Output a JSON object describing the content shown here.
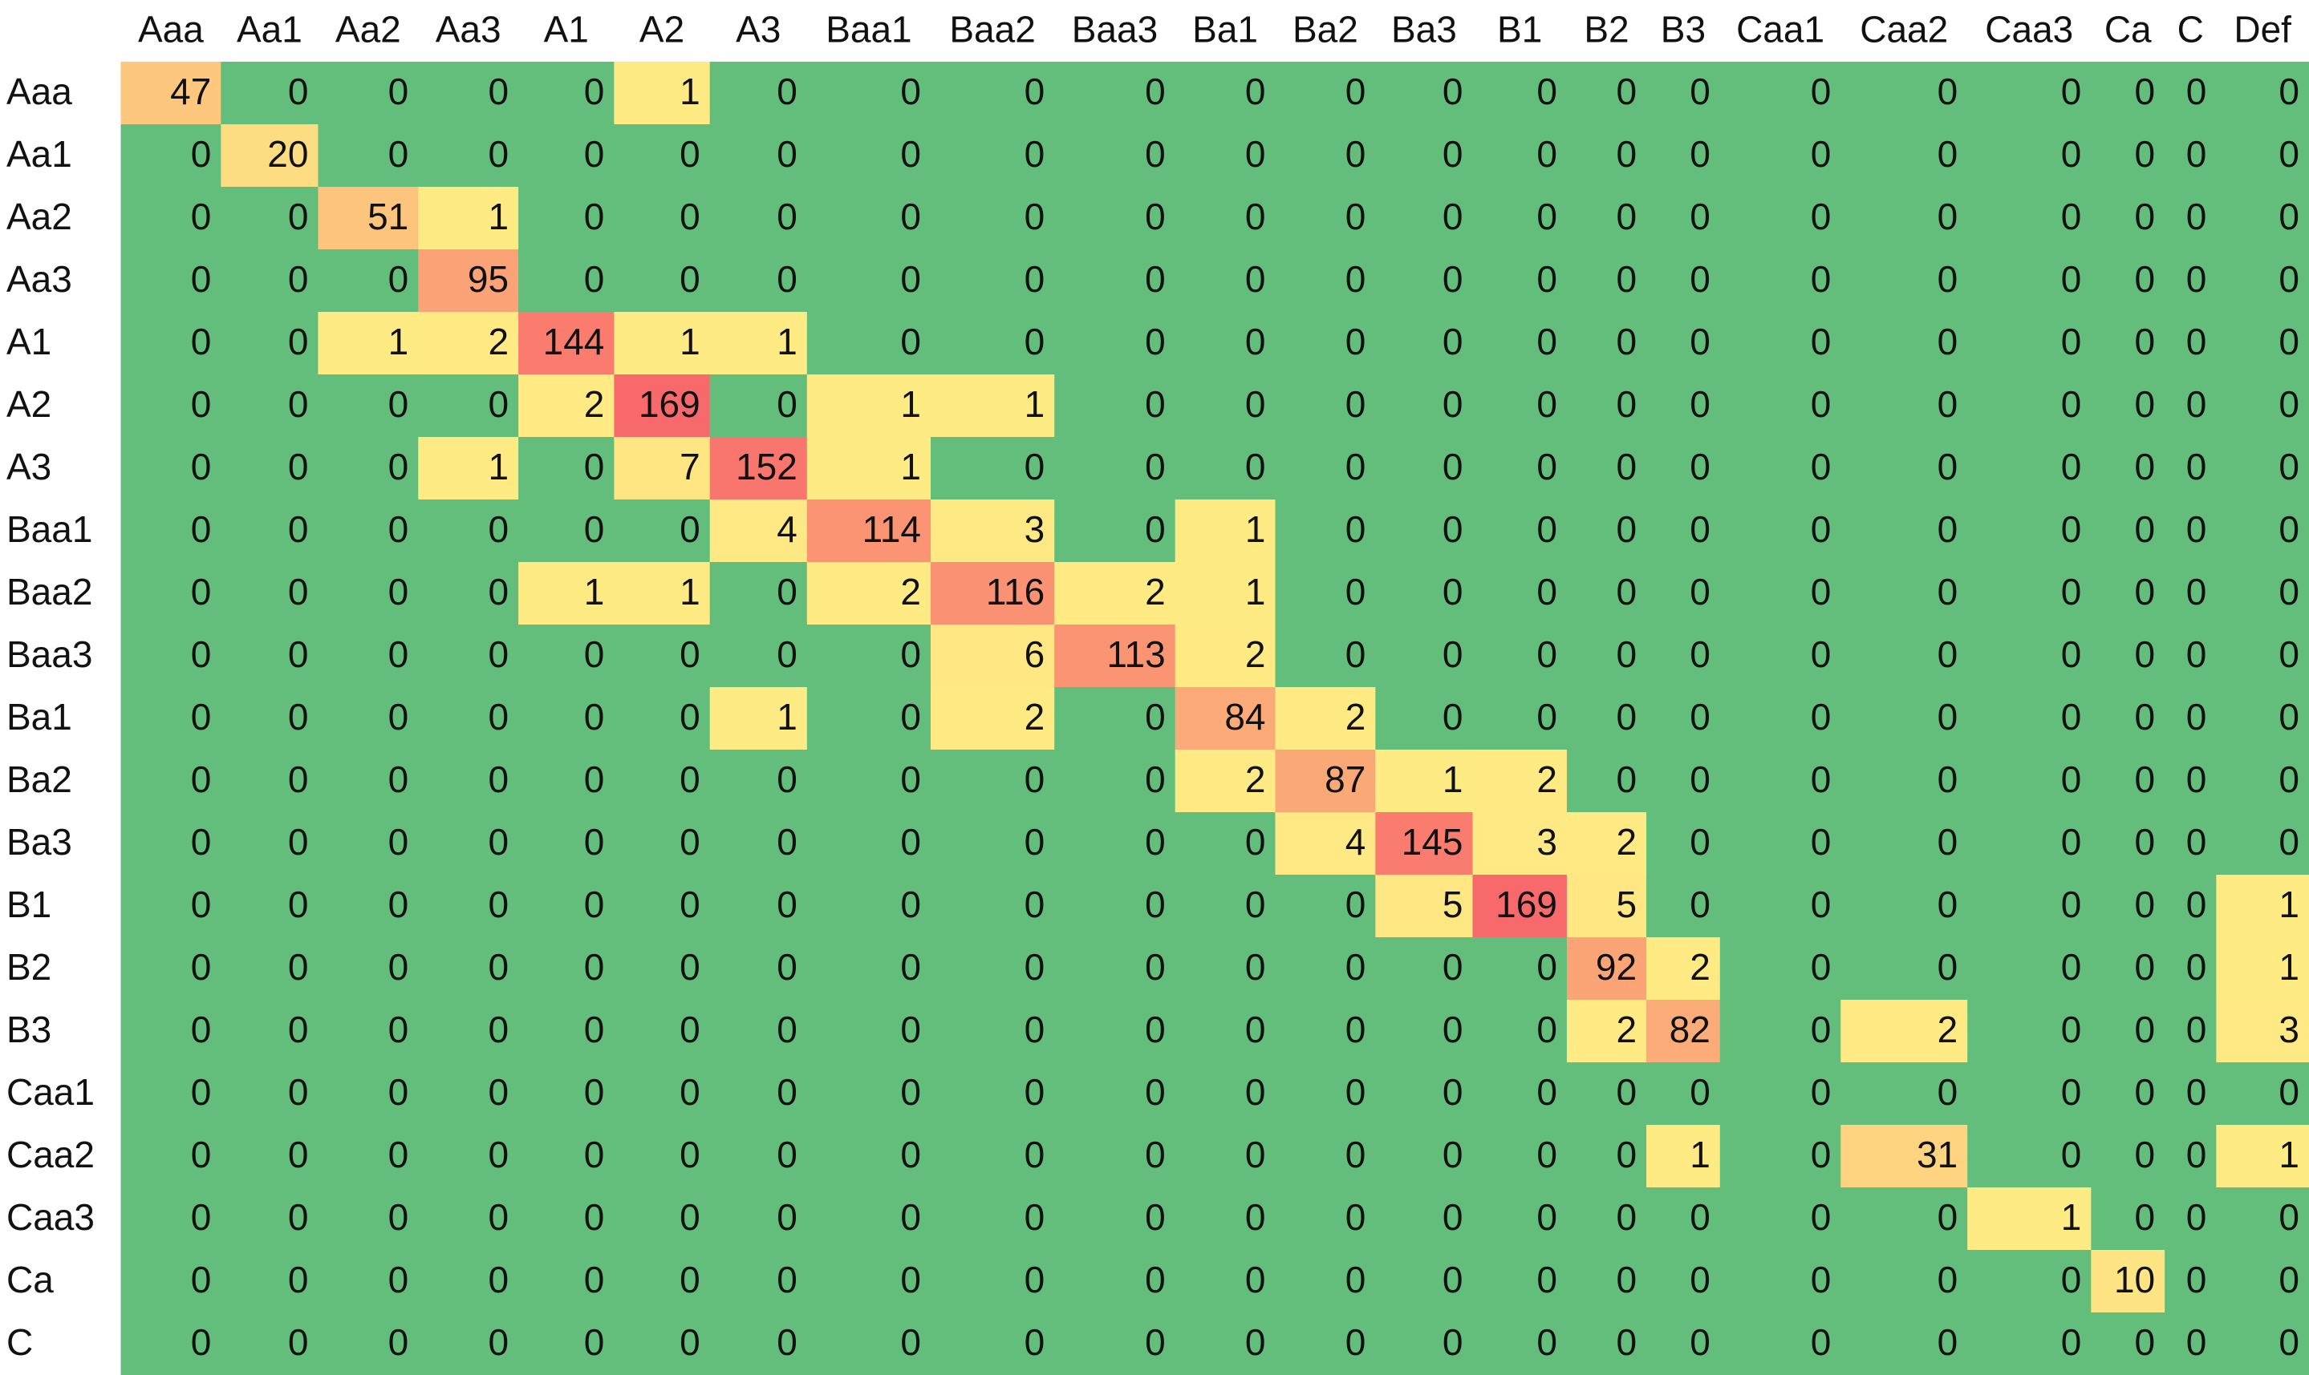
{
  "table": {
    "colors": {
      "zero": "#63be7b",
      "low": "#ffeb84",
      "high": "#f8696b"
    },
    "columns": [
      "Aaa",
      "Aa1",
      "Aa2",
      "Aa3",
      "A1",
      "A2",
      "A3",
      "Baa1",
      "Baa2",
      "Baa3",
      "Ba1",
      "Ba2",
      "Ba3",
      "B1",
      "B2",
      "B3",
      "Caa1",
      "Caa2",
      "Caa3",
      "Ca",
      "C",
      "Def"
    ],
    "rows": [
      {
        "label": "Aaa",
        "cells": [
          47,
          0,
          0,
          0,
          0,
          1,
          0,
          0,
          0,
          0,
          0,
          0,
          0,
          0,
          0,
          0,
          0,
          0,
          0,
          0,
          0,
          0
        ]
      },
      {
        "label": "Aa1",
        "cells": [
          0,
          20,
          0,
          0,
          0,
          0,
          0,
          0,
          0,
          0,
          0,
          0,
          0,
          0,
          0,
          0,
          0,
          0,
          0,
          0,
          0,
          0
        ]
      },
      {
        "label": "Aa2",
        "cells": [
          0,
          0,
          51,
          1,
          0,
          0,
          0,
          0,
          0,
          0,
          0,
          0,
          0,
          0,
          0,
          0,
          0,
          0,
          0,
          0,
          0,
          0
        ]
      },
      {
        "label": "Aa3",
        "cells": [
          0,
          0,
          0,
          95,
          0,
          0,
          0,
          0,
          0,
          0,
          0,
          0,
          0,
          0,
          0,
          0,
          0,
          0,
          0,
          0,
          0,
          0
        ]
      },
      {
        "label": "A1",
        "cells": [
          0,
          0,
          1,
          2,
          144,
          1,
          1,
          0,
          0,
          0,
          0,
          0,
          0,
          0,
          0,
          0,
          0,
          0,
          0,
          0,
          0,
          0
        ]
      },
      {
        "label": "A2",
        "cells": [
          0,
          0,
          0,
          0,
          2,
          169,
          0,
          1,
          1,
          0,
          0,
          0,
          0,
          0,
          0,
          0,
          0,
          0,
          0,
          0,
          0,
          0
        ]
      },
      {
        "label": "A3",
        "cells": [
          0,
          0,
          0,
          1,
          0,
          7,
          152,
          1,
          0,
          0,
          0,
          0,
          0,
          0,
          0,
          0,
          0,
          0,
          0,
          0,
          0,
          0
        ]
      },
      {
        "label": "Baa1",
        "cells": [
          0,
          0,
          0,
          0,
          0,
          0,
          4,
          114,
          3,
          0,
          1,
          0,
          0,
          0,
          0,
          0,
          0,
          0,
          0,
          0,
          0,
          0
        ]
      },
      {
        "label": "Baa2",
        "cells": [
          0,
          0,
          0,
          0,
          1,
          1,
          0,
          2,
          116,
          2,
          1,
          0,
          0,
          0,
          0,
          0,
          0,
          0,
          0,
          0,
          0,
          0
        ]
      },
      {
        "label": "Baa3",
        "cells": [
          0,
          0,
          0,
          0,
          0,
          0,
          0,
          0,
          6,
          113,
          2,
          0,
          0,
          0,
          0,
          0,
          0,
          0,
          0,
          0,
          0,
          0
        ]
      },
      {
        "label": "Ba1",
        "cells": [
          0,
          0,
          0,
          0,
          0,
          0,
          1,
          0,
          2,
          0,
          84,
          2,
          0,
          0,
          0,
          0,
          0,
          0,
          0,
          0,
          0,
          0
        ]
      },
      {
        "label": "Ba2",
        "cells": [
          0,
          0,
          0,
          0,
          0,
          0,
          0,
          0,
          0,
          0,
          2,
          87,
          1,
          2,
          0,
          0,
          0,
          0,
          0,
          0,
          0,
          0
        ]
      },
      {
        "label": "Ba3",
        "cells": [
          0,
          0,
          0,
          0,
          0,
          0,
          0,
          0,
          0,
          0,
          0,
          4,
          145,
          3,
          2,
          0,
          0,
          0,
          0,
          0,
          0,
          0
        ]
      },
      {
        "label": "B1",
        "cells": [
          0,
          0,
          0,
          0,
          0,
          0,
          0,
          0,
          0,
          0,
          0,
          0,
          5,
          169,
          5,
          0,
          0,
          0,
          0,
          0,
          0,
          1
        ]
      },
      {
        "label": "B2",
        "cells": [
          0,
          0,
          0,
          0,
          0,
          0,
          0,
          0,
          0,
          0,
          0,
          0,
          0,
          0,
          92,
          2,
          0,
          0,
          0,
          0,
          0,
          1
        ]
      },
      {
        "label": "B3",
        "cells": [
          0,
          0,
          0,
          0,
          0,
          0,
          0,
          0,
          0,
          0,
          0,
          0,
          0,
          0,
          2,
          82,
          0,
          2,
          0,
          0,
          0,
          3
        ]
      },
      {
        "label": "Caa1",
        "cells": [
          0,
          0,
          0,
          0,
          0,
          0,
          0,
          0,
          0,
          0,
          0,
          0,
          0,
          0,
          0,
          0,
          0,
          0,
          0,
          0,
          0,
          0
        ]
      },
      {
        "label": "Caa2",
        "cells": [
          0,
          0,
          0,
          0,
          0,
          0,
          0,
          0,
          0,
          0,
          0,
          0,
          0,
          0,
          0,
          1,
          0,
          31,
          0,
          0,
          0,
          1
        ]
      },
      {
        "label": "Caa3",
        "cells": [
          0,
          0,
          0,
          0,
          0,
          0,
          0,
          0,
          0,
          0,
          0,
          0,
          0,
          0,
          0,
          0,
          0,
          0,
          1,
          0,
          0,
          0
        ]
      },
      {
        "label": "Ca",
        "cells": [
          0,
          0,
          0,
          0,
          0,
          0,
          0,
          0,
          0,
          0,
          0,
          0,
          0,
          0,
          0,
          0,
          0,
          0,
          0,
          10,
          0,
          0
        ]
      },
      {
        "label": "C",
        "cells": [
          0,
          0,
          0,
          0,
          0,
          0,
          0,
          0,
          0,
          0,
          0,
          0,
          0,
          0,
          0,
          0,
          0,
          0,
          0,
          0,
          0,
          0
        ]
      }
    ]
  }
}
